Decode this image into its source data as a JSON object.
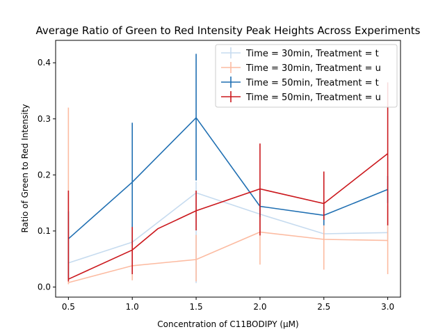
{
  "chart_data": {
    "type": "line",
    "title": "Average Ratio of Green to Red Intensity Peak Heights Across Experiments",
    "xlabel": "Concentration of C11BODIPY (μM)",
    "ylabel": "Ratio of Green to Red Intensity",
    "xlim": [
      0.4,
      3.1
    ],
    "ylim": [
      -0.018,
      0.44
    ],
    "x_ticks": [
      0.5,
      1.0,
      1.5,
      2.0,
      2.5,
      3.0
    ],
    "x_tick_labels": [
      "0.5",
      "1.0",
      "1.5",
      "2.0",
      "2.5",
      "3.0"
    ],
    "y_ticks": [
      0.0,
      0.1,
      0.2,
      0.3,
      0.4
    ],
    "y_tick_labels": [
      "0.0",
      "0.1",
      "0.2",
      "0.3",
      "0.4"
    ],
    "grid": false,
    "legend_position": "top-right",
    "series": [
      {
        "name": "Time = 30min, Treatment = t",
        "color": "#c6dbef",
        "x": [
          0.5,
          1.0,
          1.5,
          2.0,
          2.5,
          3.0
        ],
        "y": [
          0.043,
          0.08,
          0.168,
          0.13,
          0.095,
          0.097
        ],
        "err_low": [
          0.012,
          0.022,
          0.007,
          0.094,
          0.087,
          0.085
        ],
        "err_high": [
          0.1,
          0.113,
          0.188,
          0.16,
          0.105,
          0.112
        ]
      },
      {
        "name": "Time = 30min, Treatment = u",
        "color": "#fcbba1",
        "x": [
          0.5,
          1.0,
          1.5,
          2.0,
          2.5,
          3.0
        ],
        "y": [
          0.008,
          0.038,
          0.049,
          0.098,
          0.085,
          0.083
        ],
        "err_low": [
          0.005,
          0.012,
          0.01,
          0.04,
          0.031,
          0.023
        ],
        "err_high": [
          0.32,
          0.075,
          0.093,
          0.14,
          0.13,
          0.145
        ]
      },
      {
        "name": "Time = 50min, Treatment = t",
        "color": "#1f6fb2",
        "x": [
          0.5,
          1.0,
          1.5,
          2.0,
          2.5,
          3.0
        ],
        "y": [
          0.086,
          0.187,
          0.302,
          0.144,
          0.128,
          0.174
        ],
        "err_low": [
          0.015,
          0.075,
          0.19,
          0.125,
          0.11,
          0.15
        ],
        "err_high": [
          0.135,
          0.293,
          0.416,
          0.175,
          0.148,
          0.198
        ]
      },
      {
        "name": "Time = 50min, Treatment = u",
        "color": "#cb181d",
        "x": [
          0.5,
          1.0,
          1.2,
          1.5,
          2.0,
          2.5,
          3.0
        ],
        "y": [
          0.014,
          0.066,
          0.104,
          0.136,
          0.175,
          0.149,
          0.238
        ],
        "err_x": [
          0.5,
          1.0,
          1.5,
          2.0,
          2.5,
          3.0
        ],
        "err_low": [
          0.01,
          0.023,
          0.101,
          0.092,
          0.12,
          0.11
        ],
        "err_high": [
          0.172,
          0.107,
          0.172,
          0.256,
          0.206,
          0.365
        ]
      }
    ]
  }
}
